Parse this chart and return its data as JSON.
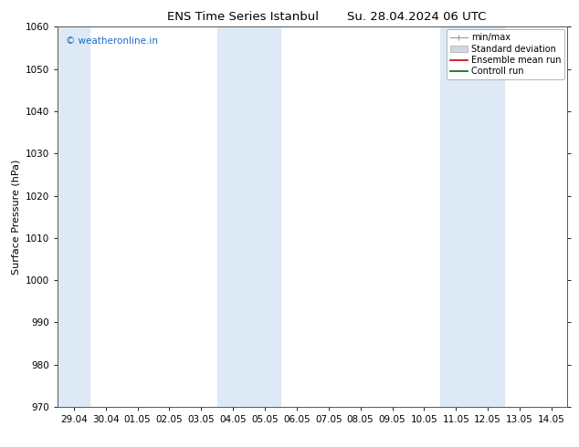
{
  "title_left": "ENS Time Series Istanbul",
  "title_right": "Su. 28.04.2024 06 UTC",
  "ylabel": "Surface Pressure (hPa)",
  "ylim": [
    970,
    1060
  ],
  "yticks": [
    970,
    980,
    990,
    1000,
    1010,
    1020,
    1030,
    1040,
    1050,
    1060
  ],
  "xtick_labels": [
    "29.04",
    "30.04",
    "01.05",
    "02.05",
    "03.05",
    "04.05",
    "05.05",
    "06.05",
    "07.05",
    "08.05",
    "09.05",
    "10.05",
    "11.05",
    "12.05",
    "13.05",
    "14.05"
  ],
  "shaded_bands": [
    {
      "xstart": -0.5,
      "xend": 0.5,
      "color": "#ddeaf5"
    },
    {
      "xstart": 4.5,
      "xend": 6.5,
      "color": "#ddeaf5"
    },
    {
      "xstart": 11.5,
      "xend": 13.5,
      "color": "#ddeaf5"
    }
  ],
  "watermark_text": "© weatheronline.in",
  "watermark_color": "#1a6ec4",
  "legend_labels": [
    "min/max",
    "Standard deviation",
    "Ensemble mean run",
    "Controll run"
  ],
  "background_color": "#ffffff"
}
